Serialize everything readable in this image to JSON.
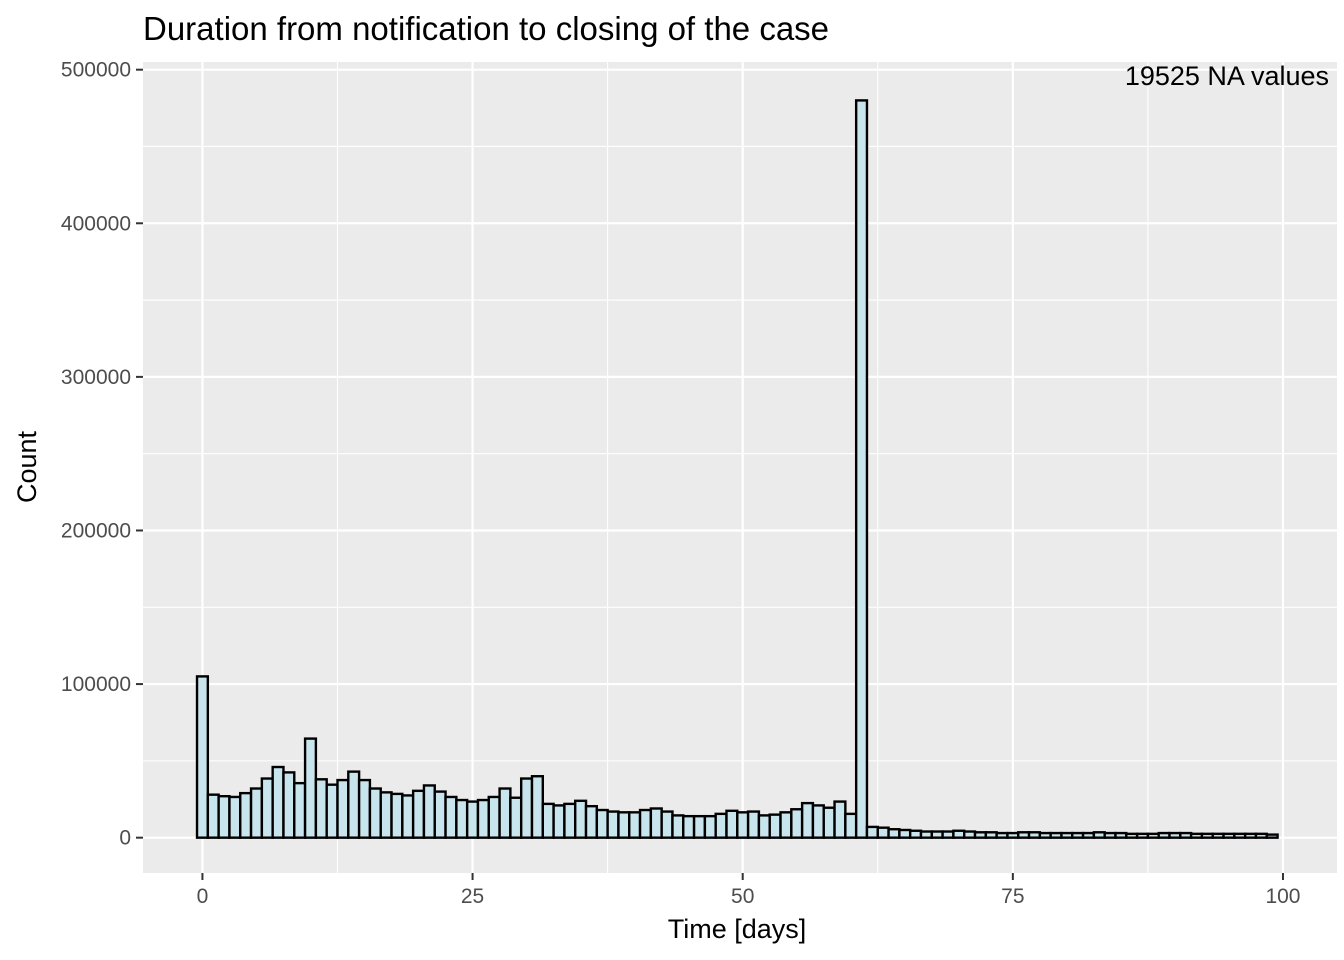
{
  "chart_data": {
    "type": "bar",
    "title": "Duration from notification to closing of the case",
    "xlabel": "Time [days]",
    "ylabel": "Count",
    "annotation": "19525 NA values",
    "xlim": [
      -5.5,
      105
    ],
    "ylim": [
      -23000,
      505000
    ],
    "x_ticks": [
      0,
      25,
      50,
      75,
      100
    ],
    "x_tick_labels": [
      "0",
      "25",
      "50",
      "75",
      "100"
    ],
    "y_ticks": [
      0,
      100000,
      200000,
      300000,
      400000,
      500000
    ],
    "y_tick_labels": [
      "0",
      "100000",
      "200000",
      "300000",
      "400000",
      "500000"
    ],
    "grid": true,
    "bin_width": 1,
    "bin_start": -0.5,
    "values": [
      105000,
      28000,
      27000,
      26500,
      29000,
      32000,
      38500,
      46000,
      42500,
      35500,
      64500,
      38000,
      34500,
      37500,
      43000,
      37500,
      32000,
      29500,
      28500,
      27500,
      30500,
      34000,
      30000,
      26500,
      24500,
      23500,
      24500,
      26500,
      32000,
      26000,
      38500,
      40000,
      22000,
      21000,
      22000,
      24000,
      20500,
      18000,
      17000,
      16500,
      16500,
      18000,
      19000,
      17000,
      14500,
      14000,
      14000,
      14000,
      15500,
      17500,
      16500,
      17000,
      14500,
      15000,
      16500,
      18500,
      22500,
      21000,
      19500,
      23500,
      15500,
      480000,
      7000,
      6500,
      5500,
      5000,
      4500,
      4000,
      4000,
      4000,
      4500,
      4000,
      3500,
      3500,
      3000,
      3000,
      3500,
      3500,
      3000,
      3000,
      3000,
      3000,
      3000,
      3500,
      3000,
      3000,
      2500,
      2500,
      2500,
      3000,
      3000,
      3000,
      2500,
      2500,
      2500,
      2500,
      2500,
      2500,
      2500,
      2000
    ],
    "colors": {
      "panel": "#ebebeb",
      "bar_fill": "#c8e4ec",
      "bar_stroke": "#000000",
      "grid": "#ffffff"
    }
  }
}
